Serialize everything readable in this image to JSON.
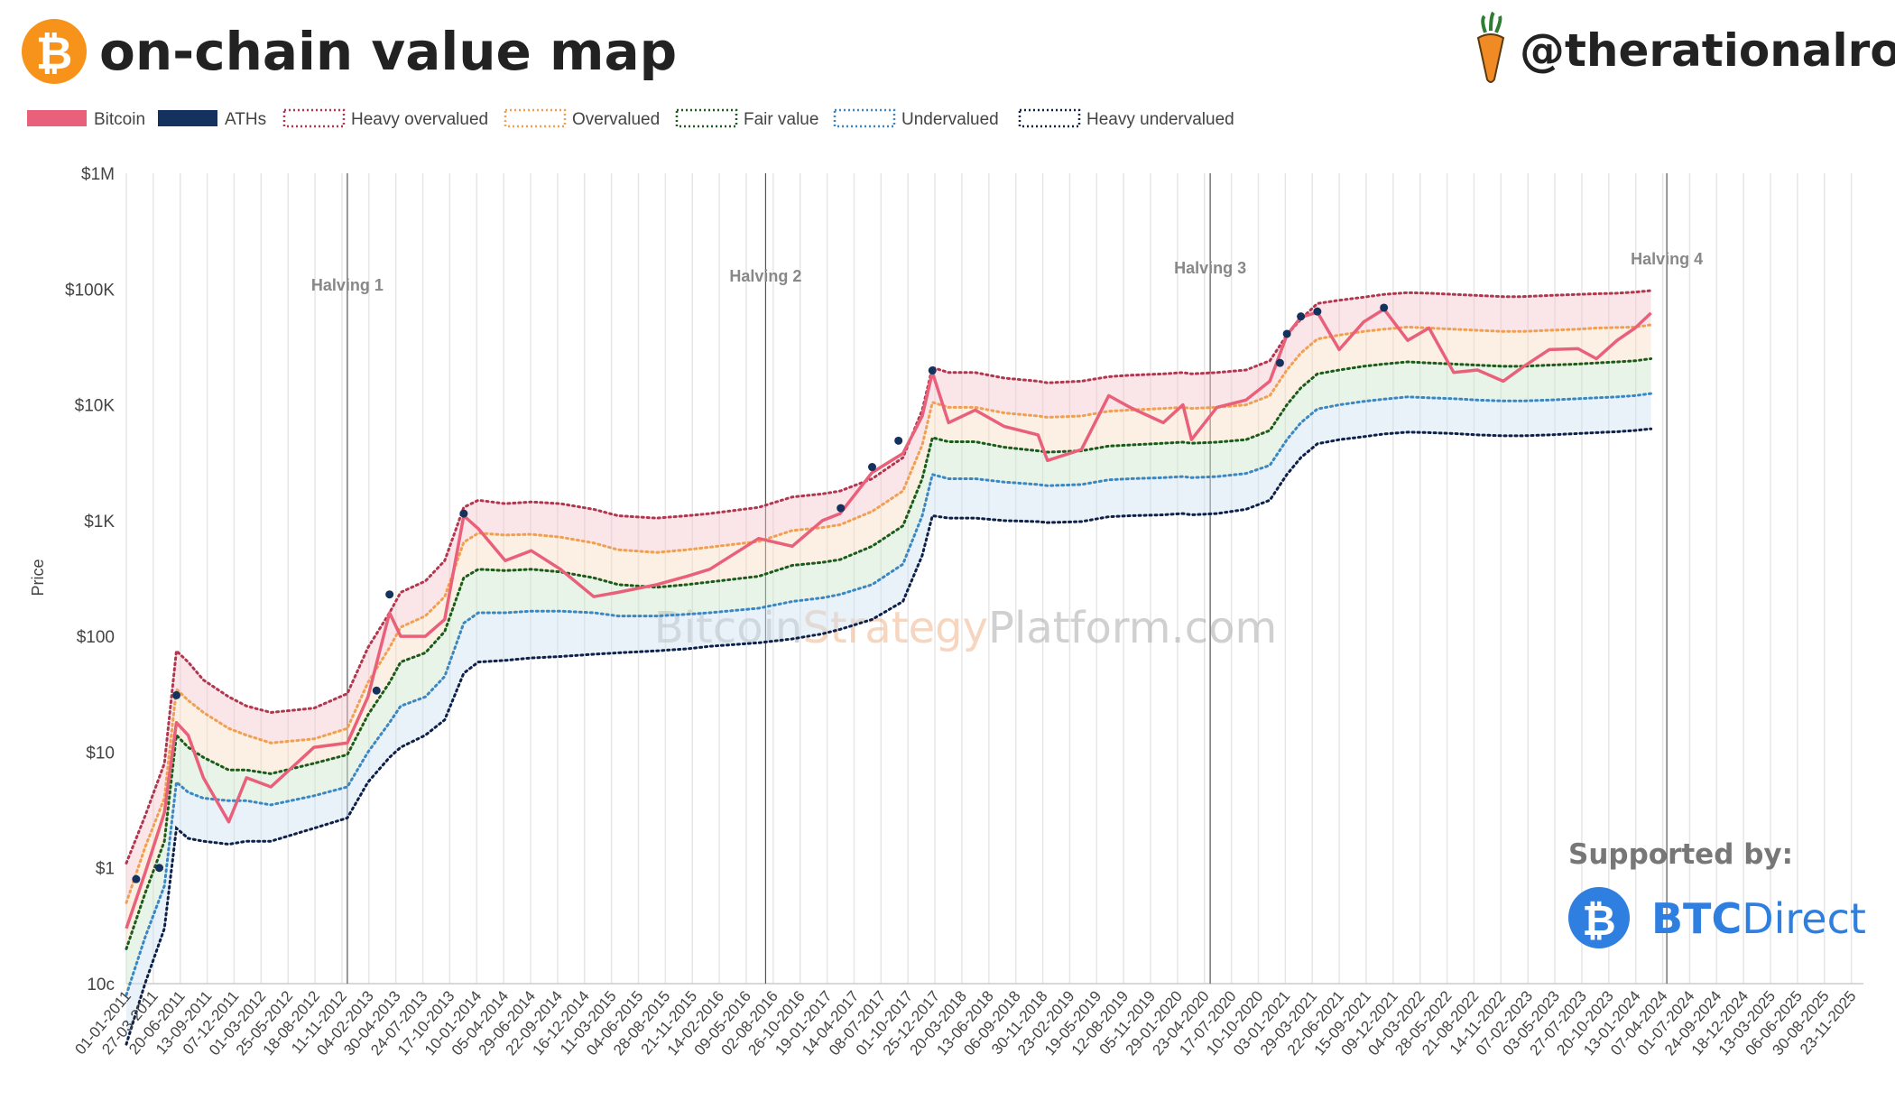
{
  "header": {
    "title": "on-chain value map",
    "handle": "@therationalroot",
    "bitcoin_icon": "bitcoin-icon",
    "handle_icon": "carrot-icon"
  },
  "watermark": {
    "part1": "Bitcoin",
    "part2": "Strategy",
    "part3": "Platform.com"
  },
  "sponsor": {
    "label": "Supported by:",
    "brand_part1": "BTC",
    "brand_part2": "Direct",
    "logo_icon": "btcdirect-logo-icon"
  },
  "colors": {
    "bitcoin": "#e9607a",
    "aths": "#15325e",
    "heavy_overvalued": "#b3364f",
    "overvalued": "#f0a050",
    "fair_value": "#1a5c1a",
    "undervalued": "#3a87c4",
    "heavy_undervalued": "#0e2148",
    "orange": "#f7931a",
    "btcdirect": "#2f7fe0"
  },
  "chart_data": {
    "type": "line",
    "y_scale": "log",
    "ylim": [
      0.1,
      1000000
    ],
    "xlim": [
      "2011-01-01",
      "2025-12-31"
    ],
    "ylabel": "Price",
    "xlabel": "",
    "grid": "vertical",
    "legend_position": "top-left",
    "yticks": [
      "10c",
      "$1",
      "$10",
      "$100",
      "$1K",
      "$10K",
      "$100K",
      "$1M"
    ],
    "xticks": [
      "01-01-2011",
      "27-03-2011",
      "20-06-2011",
      "13-09-2011",
      "07-12-2011",
      "01-03-2012",
      "25-05-2012",
      "18-08-2012",
      "11-11-2012",
      "04-02-2013",
      "30-04-2013",
      "24-07-2013",
      "17-10-2013",
      "10-01-2014",
      "05-04-2014",
      "29-06-2014",
      "22-09-2014",
      "16-12-2014",
      "11-03-2015",
      "04-06-2015",
      "28-08-2015",
      "21-11-2015",
      "14-02-2016",
      "09-05-2016",
      "02-08-2016",
      "26-10-2016",
      "19-01-2017",
      "14-04-2017",
      "08-07-2017",
      "01-10-2017",
      "25-12-2017",
      "20-03-2018",
      "13-06-2018",
      "06-09-2018",
      "30-11-2018",
      "23-02-2019",
      "19-05-2019",
      "12-08-2019",
      "05-11-2019",
      "29-01-2020",
      "23-04-2020",
      "17-07-2020",
      "10-10-2020",
      "03-01-2021",
      "29-03-2021",
      "22-06-2021",
      "15-09-2021",
      "09-12-2021",
      "04-03-2022",
      "28-05-2022",
      "21-08-2022",
      "14-11-2022",
      "07-02-2023",
      "03-05-2023",
      "27-07-2023",
      "20-10-2023",
      "13-01-2024",
      "07-04-2024",
      "01-07-2024",
      "24-09-2024",
      "18-12-2024",
      "13-03-2025",
      "06-06-2025",
      "30-08-2025",
      "23-11-2025"
    ],
    "annotations": [
      {
        "label": "Halving 1",
        "date": "2012-11-28"
      },
      {
        "label": "Halving 2",
        "date": "2016-07-09"
      },
      {
        "label": "Halving 3",
        "date": "2020-05-11"
      },
      {
        "label": "Halving 4",
        "date": "2024-04-20"
      }
    ],
    "legend": [
      {
        "key": "bitcoin",
        "label": "Bitcoin",
        "style": "solid"
      },
      {
        "key": "aths",
        "label": "ATHs",
        "style": "solid"
      },
      {
        "key": "heavy_overvalued",
        "label": "Heavy overvalued",
        "style": "dotted"
      },
      {
        "key": "overvalued",
        "label": "Overvalued",
        "style": "dotted"
      },
      {
        "key": "fair_value",
        "label": "Fair value",
        "style": "dotted"
      },
      {
        "key": "undervalued",
        "label": "Undervalued",
        "style": "dotted"
      },
      {
        "key": "heavy_undervalued",
        "label": "Heavy undervalued",
        "style": "dotted"
      }
    ],
    "dates": [
      "2011-01-01",
      "2011-03-01",
      "2011-05-01",
      "2011-06-08",
      "2011-07-15",
      "2011-09-01",
      "2011-11-20",
      "2012-01-15",
      "2012-04-01",
      "2012-08-15",
      "2012-11-28",
      "2013-02-01",
      "2013-04-10",
      "2013-05-15",
      "2013-08-01",
      "2013-10-01",
      "2013-11-30",
      "2014-01-15",
      "2014-04-10",
      "2014-07-01",
      "2014-10-01",
      "2015-01-14",
      "2015-04-01",
      "2015-08-01",
      "2015-11-04",
      "2016-01-15",
      "2016-06-17",
      "2016-10-01",
      "2017-01-04",
      "2017-03-01",
      "2017-06-10",
      "2017-09-15",
      "2017-11-15",
      "2017-12-17",
      "2018-02-06",
      "2018-05-01",
      "2018-08-01",
      "2018-11-15",
      "2018-12-15",
      "2019-04-01",
      "2019-06-26",
      "2019-09-01",
      "2019-12-15",
      "2020-02-15",
      "2020-03-13",
      "2020-06-01",
      "2020-09-01",
      "2020-11-15",
      "2021-01-08",
      "2021-02-21",
      "2021-04-14",
      "2021-06-22",
      "2021-09-07",
      "2021-11-10",
      "2022-01-24",
      "2022-04-01",
      "2022-06-18",
      "2022-09-01",
      "2022-11-21",
      "2023-01-20",
      "2023-04-15",
      "2023-07-15",
      "2023-09-11",
      "2023-11-15",
      "2024-01-11",
      "2024-03-01"
    ],
    "series": [
      {
        "name": "Bitcoin",
        "key": "bitcoin",
        "values": [
          0.3,
          0.9,
          3,
          18,
          14,
          6,
          2.5,
          6,
          5,
          11,
          12,
          30,
          160,
          100,
          100,
          140,
          1100,
          850,
          450,
          550,
          380,
          220,
          240,
          280,
          330,
          380,
          700,
          600,
          1000,
          1150,
          2600,
          3800,
          8000,
          19000,
          7000,
          9000,
          6500,
          5500,
          3300,
          4100,
          12000,
          9500,
          7000,
          10000,
          5000,
          9500,
          11000,
          16000,
          40000,
          57000,
          63000,
          30000,
          52000,
          67000,
          36000,
          46000,
          19000,
          20000,
          16000,
          21000,
          30000,
          30500,
          25000,
          36000,
          46000,
          62000
        ]
      },
      {
        "name": "ATHs",
        "key": "aths",
        "points": [
          [
            "2011-02-01",
            0.8
          ],
          [
            "2011-04-15",
            1.0
          ],
          [
            "2011-06-08",
            31
          ],
          [
            "2013-02-28",
            34
          ],
          [
            "2013-04-10",
            230
          ],
          [
            "2013-11-30",
            1150
          ],
          [
            "2017-03-03",
            1280
          ],
          [
            "2017-06-10",
            2900
          ],
          [
            "2017-09-01",
            4900
          ],
          [
            "2017-12-17",
            19800
          ],
          [
            "2020-12-17",
            23000
          ],
          [
            "2021-01-08",
            41000
          ],
          [
            "2021-02-21",
            58000
          ],
          [
            "2021-04-14",
            64000
          ],
          [
            "2021-11-10",
            69000
          ]
        ]
      },
      {
        "name": "Heavy overvalued",
        "key": "heavy_overvalued",
        "values": [
          1.1,
          2.8,
          8,
          75,
          60,
          42,
          30,
          25,
          22,
          24,
          32,
          80,
          160,
          240,
          300,
          450,
          1300,
          1500,
          1400,
          1450,
          1400,
          1250,
          1100,
          1050,
          1100,
          1150,
          1300,
          1600,
          1700,
          1800,
          2300,
          3500,
          9000,
          21000,
          19000,
          19000,
          17000,
          16000,
          15500,
          16000,
          17500,
          18000,
          18500,
          19000,
          18500,
          19000,
          20000,
          24000,
          40000,
          55000,
          75000,
          80000,
          85000,
          90000,
          93000,
          92000,
          90000,
          88000,
          86000,
          86000,
          88000,
          90000,
          91000,
          92000,
          94000,
          97000
        ]
      },
      {
        "name": "Overvalued",
        "key": "overvalued",
        "values": [
          0.5,
          1.5,
          4,
          35,
          28,
          22,
          16,
          14,
          12,
          13,
          16,
          40,
          80,
          120,
          150,
          220,
          650,
          780,
          750,
          760,
          720,
          640,
          560,
          530,
          560,
          590,
          660,
          820,
          870,
          920,
          1200,
          1800,
          4500,
          10500,
          9500,
          9500,
          8500,
          8000,
          7800,
          8000,
          8800,
          9000,
          9300,
          9500,
          9300,
          9500,
          10000,
          12000,
          20000,
          28000,
          37000,
          40000,
          43000,
          45000,
          47000,
          46000,
          45000,
          44000,
          43000,
          43000,
          44000,
          45000,
          46000,
          46500,
          47000,
          49000
        ]
      },
      {
        "name": "Fair value",
        "key": "fair_value",
        "values": [
          0.2,
          0.6,
          1.7,
          14,
          11,
          9,
          7,
          7,
          6.5,
          8,
          9.5,
          21,
          40,
          60,
          72,
          110,
          320,
          380,
          370,
          380,
          360,
          320,
          280,
          265,
          280,
          295,
          330,
          410,
          435,
          460,
          600,
          900,
          2300,
          5200,
          4800,
          4800,
          4300,
          4000,
          3900,
          4000,
          4400,
          4500,
          4650,
          4750,
          4650,
          4750,
          5000,
          6000,
          10000,
          14000,
          18500,
          20000,
          21500,
          22500,
          23500,
          23000,
          22500,
          22000,
          21500,
          21500,
          22000,
          22500,
          23000,
          23500,
          24000,
          25000
        ]
      },
      {
        "name": "Undervalued",
        "key": "undervalued",
        "values": [
          0.08,
          0.25,
          0.7,
          5.5,
          4.5,
          4,
          3.8,
          3.8,
          3.5,
          4.2,
          5,
          10,
          18,
          25,
          30,
          45,
          130,
          160,
          160,
          165,
          165,
          160,
          150,
          150,
          155,
          160,
          175,
          200,
          215,
          230,
          280,
          420,
          1100,
          2500,
          2300,
          2300,
          2150,
          2050,
          2000,
          2050,
          2250,
          2300,
          2350,
          2400,
          2350,
          2400,
          2550,
          3000,
          5000,
          7000,
          9200,
          10000,
          10700,
          11200,
          11700,
          11500,
          11300,
          11000,
          10800,
          10800,
          11000,
          11300,
          11500,
          11700,
          12000,
          12500
        ]
      },
      {
        "name": "Heavy undervalued",
        "key": "heavy_undervalued",
        "values": [
          0.03,
          0.1,
          0.3,
          2.2,
          1.8,
          1.7,
          1.6,
          1.7,
          1.7,
          2.2,
          2.7,
          5.5,
          9,
          11,
          14,
          19,
          48,
          60,
          62,
          65,
          67,
          70,
          72,
          75,
          78,
          82,
          88,
          95,
          105,
          115,
          140,
          200,
          500,
          1100,
          1050,
          1050,
          1000,
          980,
          960,
          980,
          1080,
          1100,
          1120,
          1150,
          1120,
          1150,
          1250,
          1500,
          2500,
          3500,
          4600,
          5000,
          5300,
          5600,
          5800,
          5750,
          5650,
          5500,
          5400,
          5400,
          5500,
          5650,
          5750,
          5850,
          6000,
          6200
        ]
      }
    ]
  }
}
